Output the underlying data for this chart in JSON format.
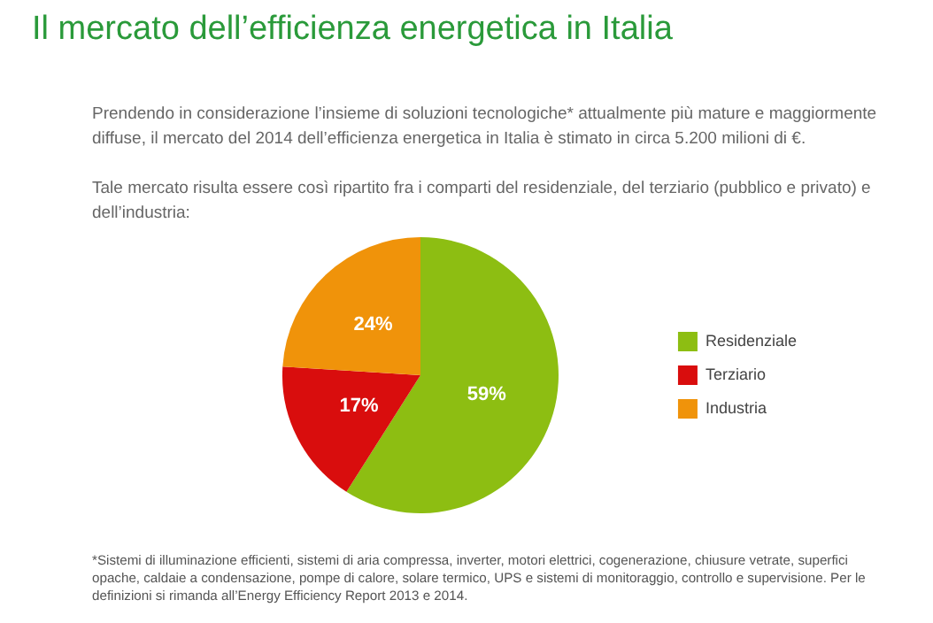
{
  "chart_data": {
    "type": "pie",
    "title": "Il mercato dell’efficienza energetica in Italia",
    "subtitle": "Prendendo in considerazione l’insieme di soluzioni tecnologiche* attualmente più mature e maggiormente diffuse, il mercato del 2014 dell’efficienza energetica in Italia è stimato in circa 5.200 milioni di €.\n\nTale mercato risulta essere così ripartito fra i comparti del residenziale, del terziario (pubblico e privato) e dell’industria:",
    "categories": [
      "Residenziale",
      "Terziario",
      "Industria"
    ],
    "values": [
      59,
      17,
      24
    ],
    "colors": [
      "#8dbe12",
      "#d90d0d",
      "#f0930a"
    ],
    "value_labels": [
      "59%",
      "17%",
      "24%"
    ],
    "legend": "right",
    "annotations": [
      "*Sistemi di illuminazione efficienti, sistemi di aria compressa, inverter, motori elettrici, cogenerazione, chiusure vetrate, superfici opache, caldaie a condensazione, pompe di calore, solare termico, UPS e sistemi di monitoraggio, controllo e supervisione. Per le definizioni si rimanda all’Energy Efficiency Report 2013 e 2014."
    ]
  }
}
